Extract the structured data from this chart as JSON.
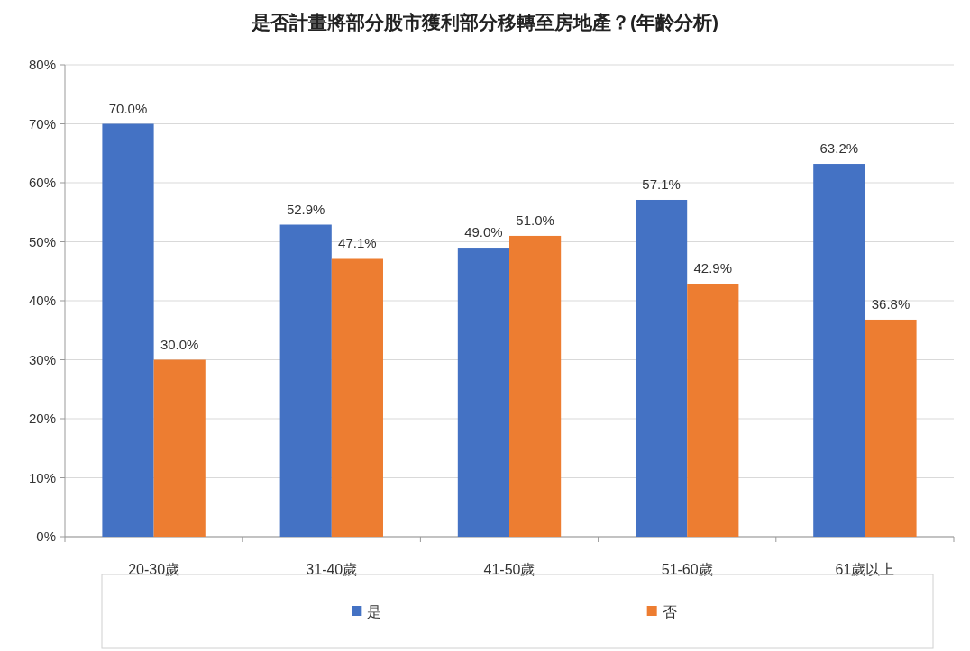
{
  "chart_data": {
    "type": "bar",
    "title": "是否計畫將部分股市獲利部分移轉至房地產？(年齡分析)",
    "categories": [
      "20-30歲",
      "31-40歲",
      "41-50歲",
      "51-60歲",
      "61歲以上"
    ],
    "series": [
      {
        "name": "是",
        "color": "#4472c4",
        "values": [
          70.0,
          52.9,
          49.0,
          57.1,
          63.2
        ],
        "value_labels": [
          "70.0%",
          "52.9%",
          "49.0%",
          "57.1%",
          "63.2%"
        ]
      },
      {
        "name": "否",
        "color": "#ed7d31",
        "values": [
          30.0,
          47.1,
          51.0,
          42.9,
          36.8
        ],
        "value_labels": [
          "30.0%",
          "47.1%",
          "51.0%",
          "42.9%",
          "36.8%"
        ]
      }
    ],
    "ylim": [
      0,
      80
    ],
    "yticks": [
      {
        "value": 0,
        "label": "0%"
      },
      {
        "value": 10,
        "label": "10%"
      },
      {
        "value": 20,
        "label": "20%"
      },
      {
        "value": 30,
        "label": "30%"
      },
      {
        "value": 40,
        "label": "40%"
      },
      {
        "value": 50,
        "label": "50%"
      },
      {
        "value": 60,
        "label": "60%"
      },
      {
        "value": 70,
        "label": "70%"
      },
      {
        "value": 80,
        "label": "80%"
      }
    ],
    "grid": "y",
    "legend": "bottom"
  }
}
